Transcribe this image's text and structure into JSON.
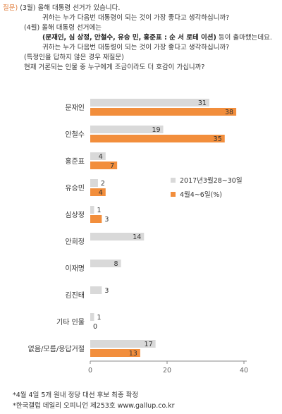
{
  "question": {
    "label": "질문)",
    "line1_prefix": "(3월)",
    "line1_text": "올해 대통령 선거가 있습니다.",
    "line2": "귀하는 누가 다음번 대통령이 되는 것이 가장 좋다고 생각하십니까?",
    "line3_prefix": "(4월)",
    "line3_text": "올해 대통령 선거에는",
    "line4_bold": "(문재인, 심 상정, 안철수, 유승 민, 홍준표 : 순 서 로테 이션)",
    "line4_rest": "등이 출마했는데요.",
    "line5": "귀하는 누가 다음번 대통령이 되는 것이 가장 좋다고 생각하십니까?",
    "line6": "(특정인을 답하지 않은 경우 재질문)",
    "line7": "현재 거론되는 인물 중 누구에게 조금이라도 더 호감이 가십니까?"
  },
  "colors": {
    "march": "#d9d9d9",
    "april": "#f28e3c",
    "axis": "#888888",
    "text": "#333333"
  },
  "chart_data": {
    "type": "bar",
    "orientation": "horizontal",
    "categories": [
      "문재인",
      "안철수",
      "홍준표",
      "유승민",
      "심상정",
      "안희정",
      "이재명",
      "김진태",
      "기타 인물",
      "없음/모름/응답거절"
    ],
    "series": [
      {
        "name": "2017년3월28~30일",
        "values": [
          31,
          19,
          4,
          2,
          1,
          14,
          8,
          3,
          1,
          17
        ]
      },
      {
        "name": "4월4~6일(%)",
        "values": [
          38,
          35,
          7,
          4,
          3,
          null,
          null,
          null,
          0,
          13
        ]
      }
    ],
    "xlim": [
      0,
      40
    ],
    "xticks": [
      0,
      20,
      40
    ],
    "grid": false,
    "legend": "right"
  },
  "footnotes": {
    "note1": "*4월 4일 5개 원내 정당 대선 후보 최종 확정",
    "note2": "*한국갤럽 데일리 오피니언 제253호 www.gallup.co.kr"
  }
}
